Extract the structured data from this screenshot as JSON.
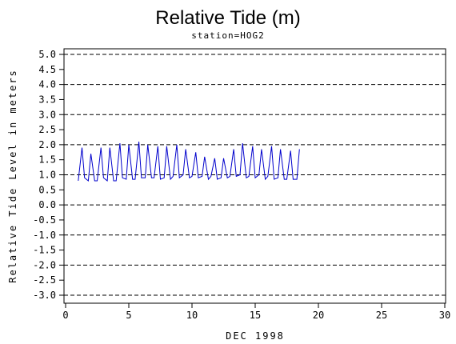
{
  "chart_data": {
    "type": "line",
    "title": "Relative Tide (m)",
    "subtitle": "station=HOG2",
    "xlabel": "DEC 1998",
    "ylabel": "Relative Tide Level in meters",
    "xlim": [
      0,
      30
    ],
    "ylim": [
      -3.0,
      5.0
    ],
    "x_ticks": [
      "0",
      "5",
      "10",
      "15",
      "20",
      "25",
      "30"
    ],
    "y_ticks": [
      "5.0",
      "4.5",
      "4.0",
      "3.5",
      "3.0",
      "2.5",
      "2.0",
      "1.5",
      "1.0",
      "0.5",
      "0.0",
      "-0.5",
      "-1.0",
      "-1.5",
      "-2.0",
      "-2.5",
      "-3.0"
    ],
    "dashed_gridlines_y": [
      5.0,
      4.0,
      3.0,
      2.0,
      1.0,
      0.0,
      -1.0,
      -2.0,
      -3.0
    ],
    "series": [
      {
        "color": "#0000cc",
        "x": [
          1.0,
          1.3,
          1.5,
          1.8,
          2.0,
          2.3,
          2.5,
          2.8,
          3.0,
          3.3,
          3.5,
          3.8,
          4.0,
          4.3,
          4.5,
          4.8,
          5.0,
          5.3,
          5.5,
          5.8,
          6.0,
          6.3,
          6.5,
          6.8,
          7.0,
          7.3,
          7.5,
          7.8,
          8.0,
          8.3,
          8.5,
          8.8,
          9.0,
          9.3,
          9.5,
          9.8,
          10.0,
          10.3,
          10.5,
          10.8,
          11.0,
          11.3,
          11.5,
          11.8,
          12.0,
          12.3,
          12.5,
          12.8,
          13.0,
          13.3,
          13.5,
          13.8,
          14.0,
          14.3,
          14.5,
          14.8,
          15.0,
          15.3,
          15.5,
          15.8,
          16.0,
          16.3,
          16.5,
          16.8,
          17.0,
          17.3,
          17.5,
          17.8,
          18.0,
          18.3,
          18.5
        ],
        "y": [
          0.8,
          1.9,
          0.9,
          0.8,
          1.7,
          0.8,
          0.8,
          1.9,
          0.9,
          0.8,
          1.9,
          0.8,
          0.8,
          2.05,
          0.9,
          0.85,
          2.0,
          0.85,
          0.85,
          2.1,
          0.9,
          0.9,
          2.0,
          0.9,
          0.9,
          1.95,
          0.85,
          0.9,
          1.95,
          0.85,
          0.95,
          2.0,
          0.9,
          1.0,
          1.85,
          0.9,
          0.95,
          1.75,
          0.9,
          0.95,
          1.6,
          0.85,
          0.95,
          1.55,
          0.85,
          0.9,
          1.55,
          0.9,
          0.95,
          1.85,
          0.95,
          1.0,
          2.05,
          0.9,
          0.95,
          1.95,
          0.9,
          1.0,
          1.85,
          0.85,
          0.95,
          1.95,
          0.85,
          0.9,
          1.85,
          0.85,
          0.85,
          1.8,
          0.85,
          0.85,
          1.85
        ]
      }
    ]
  }
}
